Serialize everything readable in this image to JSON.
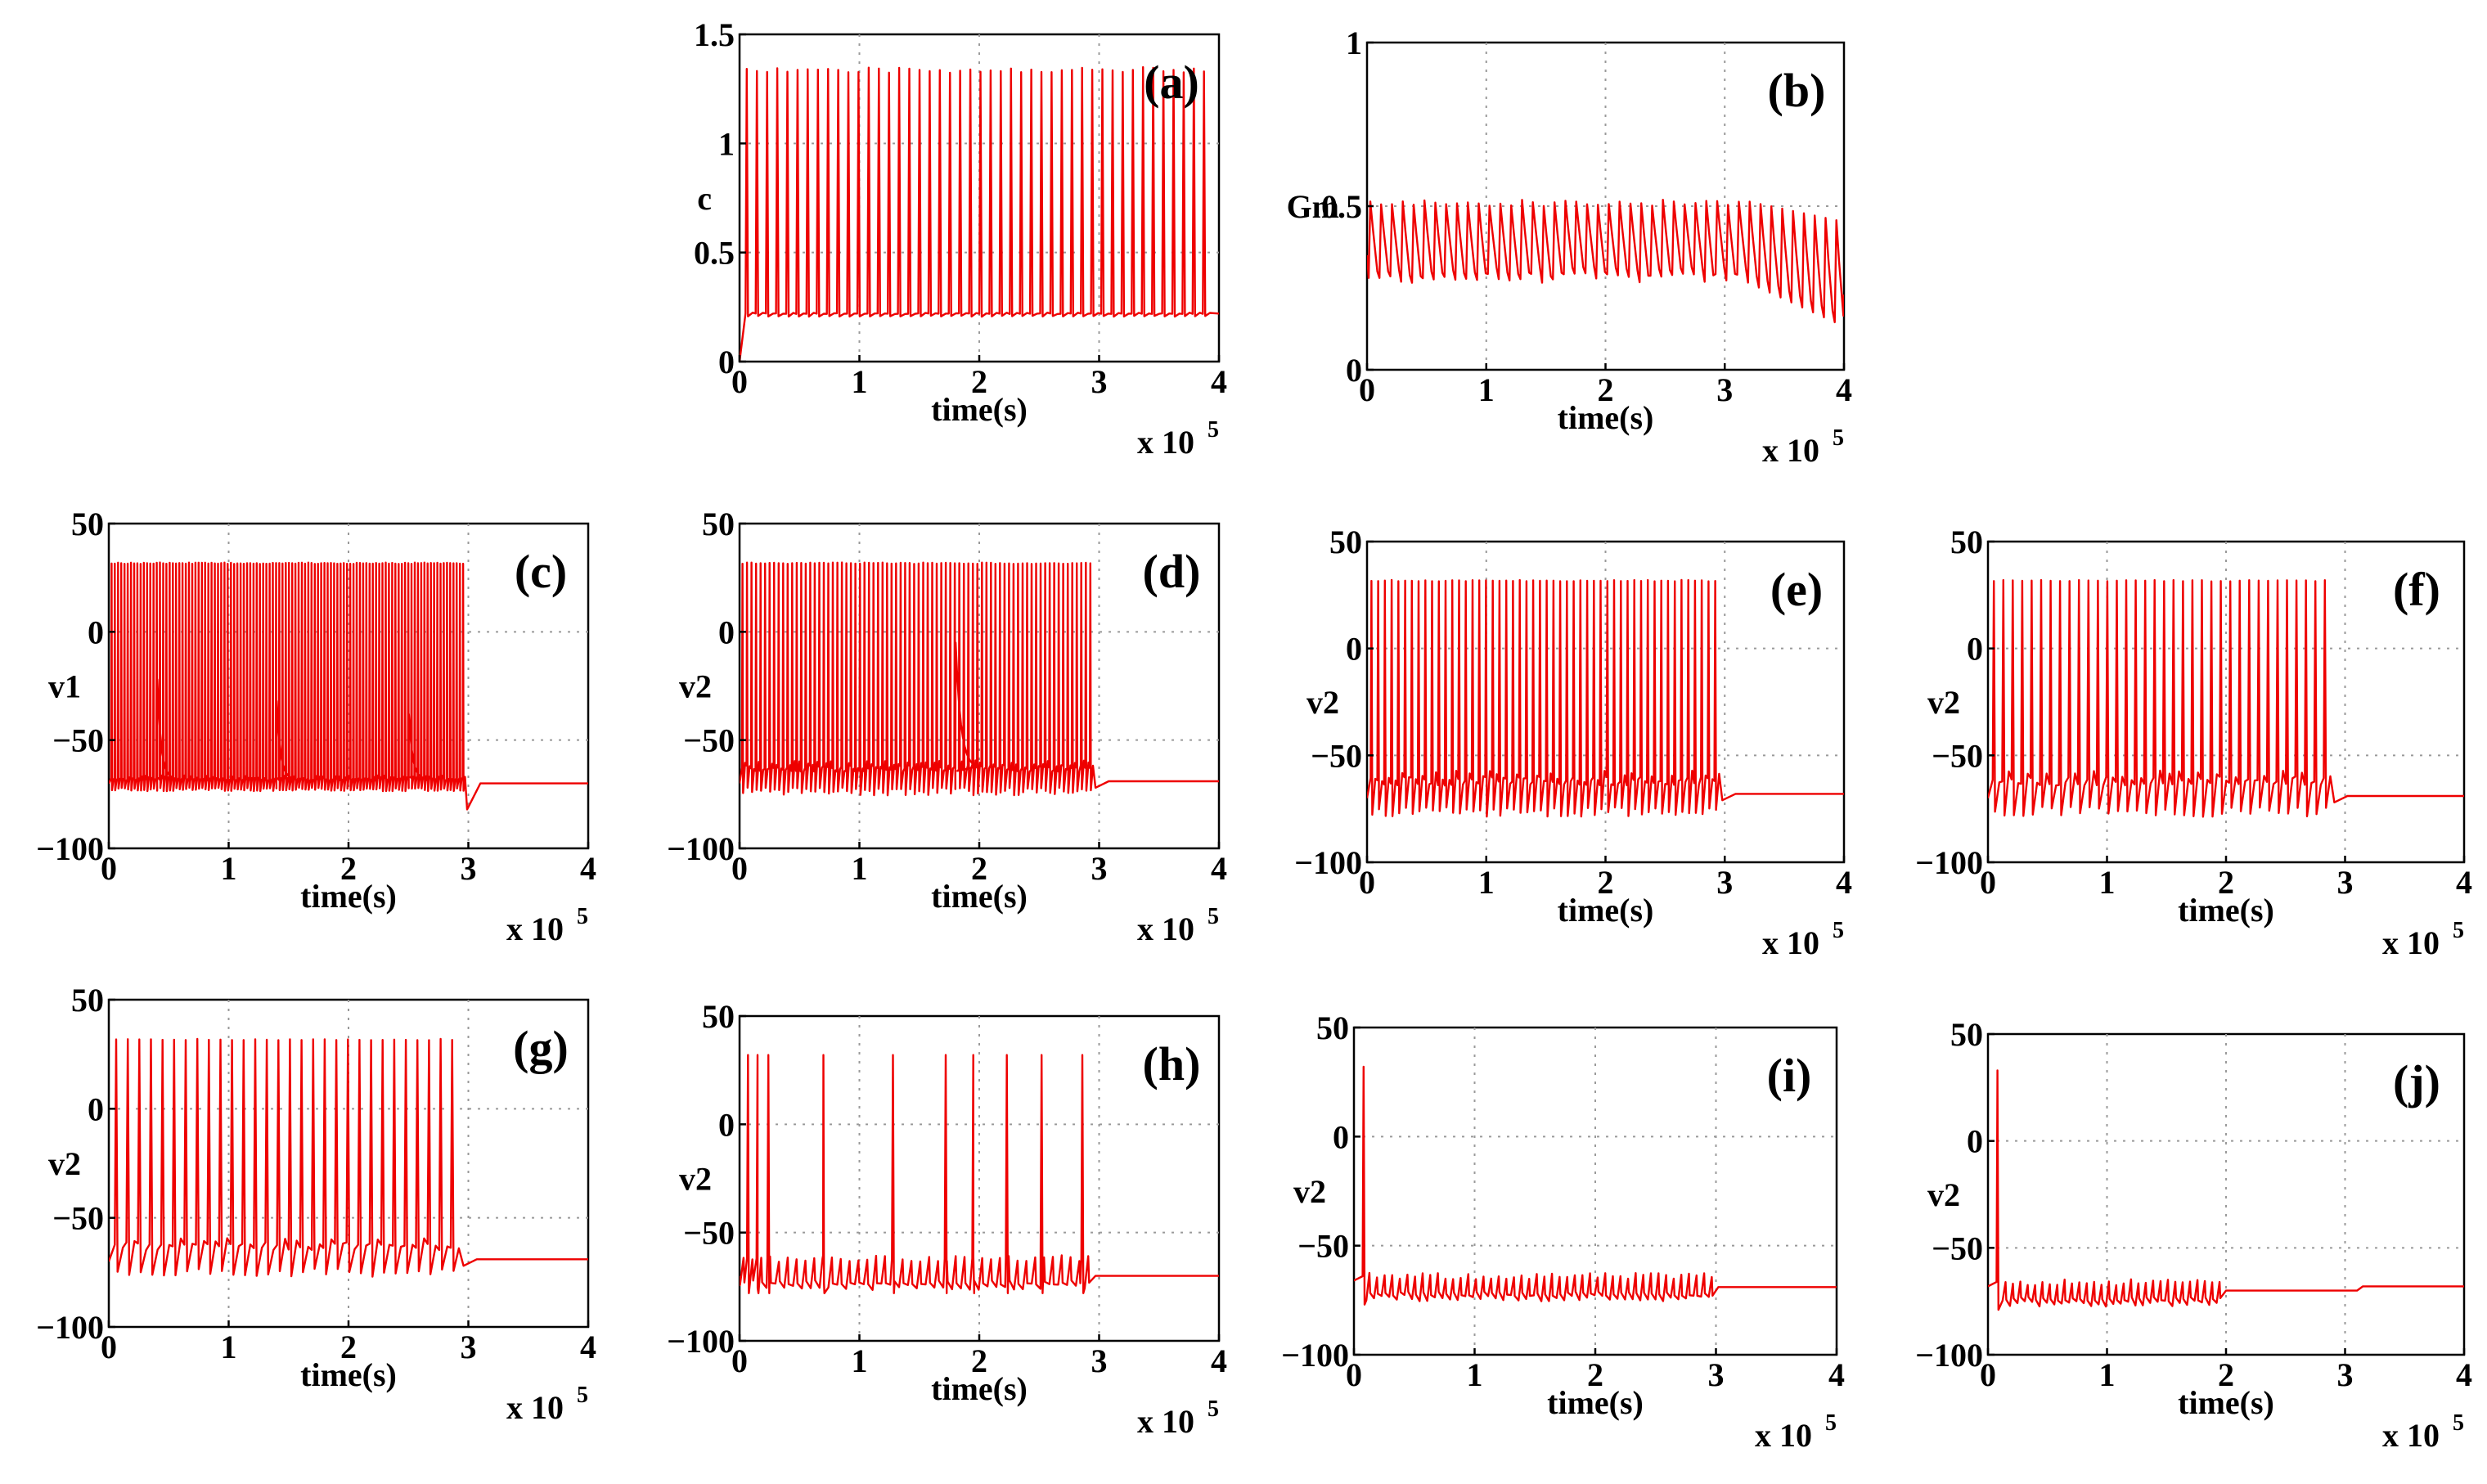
{
  "figure": {
    "description_free": true
  },
  "chart_data": [
    {
      "id": "a",
      "type": "line",
      "panel_label": "(a)",
      "xlabel": "time(s)",
      "ylabel": "c",
      "x_multiplier": "x 10",
      "x_multiplier_exp": "5",
      "xlim": [
        0,
        4
      ],
      "ylim": [
        0,
        1.5
      ],
      "xticks": [
        0,
        1,
        2,
        3,
        4
      ],
      "xtick_labels": [
        "0",
        "1",
        "2",
        "3",
        "4"
      ],
      "yticks": [
        0,
        0.5,
        1,
        1.5
      ],
      "ytick_labels": [
        "0",
        "0.5",
        "1",
        "1.5"
      ],
      "series": [
        {
          "name": "c",
          "color": "#ee0000",
          "model": {
            "kind": "spikes",
            "x_start": 0.0,
            "x_end": 4.0,
            "spike_start": 0.05,
            "spike_end": 3.95,
            "count": 46,
            "baseline": 0.22,
            "peak": 1.35,
            "undershoot": 0.21,
            "initial": 0.0
          }
        }
      ]
    },
    {
      "id": "b",
      "type": "line",
      "panel_label": "(b)",
      "xlabel": "time(s)",
      "ylabel": "Gm",
      "x_multiplier": "x 10",
      "x_multiplier_exp": "5",
      "xlim": [
        0,
        4
      ],
      "ylim": [
        0,
        1
      ],
      "xticks": [
        0,
        1,
        2,
        3,
        4
      ],
      "xtick_labels": [
        "0",
        "1",
        "2",
        "3",
        "4"
      ],
      "yticks": [
        0,
        0.5,
        1
      ],
      "ytick_labels": [
        "0",
        "0.5",
        "1"
      ],
      "series": [
        {
          "name": "Gm",
          "color": "#ee0000",
          "model": {
            "kind": "sawtooth",
            "x_start": 0.0,
            "x_end": 4.0,
            "count": 44,
            "high": 0.52,
            "low": 0.28,
            "tail_start": 3.1,
            "tail_high": 0.45,
            "tail_low": 0.13,
            "initial": 0.35
          }
        }
      ]
    },
    {
      "id": "c",
      "type": "line",
      "panel_label": "(c)",
      "xlabel": "time(s)",
      "ylabel": "v1",
      "x_multiplier": "x 10",
      "x_multiplier_exp": "5",
      "xlim": [
        0,
        4
      ],
      "ylim": [
        -100,
        50
      ],
      "xticks": [
        0,
        1,
        2,
        3,
        4
      ],
      "xtick_labels": [
        "0",
        "1",
        "2",
        "3",
        "4"
      ],
      "yticks": [
        -100,
        -50,
        0,
        50
      ],
      "ytick_labels": [
        "−100",
        "−50",
        "0",
        "50"
      ],
      "series": [
        {
          "name": "v1",
          "color": "#ee0000",
          "model": {
            "kind": "spikes",
            "x_start": 0.0,
            "x_end": 4.0,
            "spike_start": 0.02,
            "spike_end": 2.98,
            "count": 110,
            "baseline": -68,
            "peak": 32,
            "undershoot": -72,
            "rest": -70,
            "rest_dip": -82,
            "initial": -70,
            "decays": [
              [
                0.4,
                -22
              ],
              [
                1.4,
                -32
              ],
              [
                2.5,
                -38
              ]
            ]
          }
        }
      ]
    },
    {
      "id": "d",
      "type": "line",
      "panel_label": "(d)",
      "xlabel": "time(s)",
      "ylabel": "v2",
      "x_multiplier": "x 10",
      "x_multiplier_exp": "5",
      "xlim": [
        0,
        4
      ],
      "ylim": [
        -100,
        50
      ],
      "xticks": [
        0,
        1,
        2,
        3,
        4
      ],
      "xtick_labels": [
        "0",
        "1",
        "2",
        "3",
        "4"
      ],
      "yticks": [
        -100,
        -50,
        0,
        50
      ],
      "ytick_labels": [
        "−100",
        "−50",
        "0",
        "50"
      ],
      "series": [
        {
          "name": "v2",
          "color": "#ee0000",
          "model": {
            "kind": "spikes",
            "x_start": 0.0,
            "x_end": 4.0,
            "spike_start": 0.02,
            "spike_end": 2.96,
            "count": 78,
            "baseline": -63,
            "peak": 32,
            "undershoot": -72,
            "rest": -69,
            "initial": -70,
            "decays": [
              [
                1.8,
                -5
              ]
            ]
          }
        }
      ]
    },
    {
      "id": "e",
      "type": "line",
      "panel_label": "(e)",
      "xlabel": "time(s)",
      "ylabel": "v2",
      "x_multiplier": "x 10",
      "x_multiplier_exp": "5",
      "xlim": [
        0,
        4
      ],
      "ylim": [
        -100,
        50
      ],
      "xticks": [
        0,
        1,
        2,
        3,
        4
      ],
      "xtick_labels": [
        "0",
        "1",
        "2",
        "3",
        "4"
      ],
      "yticks": [
        -100,
        -50,
        0,
        50
      ],
      "ytick_labels": [
        "−100",
        "−50",
        "0",
        "50"
      ],
      "series": [
        {
          "name": "v2",
          "color": "#ee0000",
          "model": {
            "kind": "spikes",
            "x_start": 0.0,
            "x_end": 4.0,
            "spike_start": 0.03,
            "spike_end": 2.97,
            "count": 52,
            "baseline": -62,
            "peak": 32,
            "undershoot": -74,
            "rest": -68,
            "initial": -70
          }
        }
      ]
    },
    {
      "id": "f",
      "type": "line",
      "panel_label": "(f)",
      "xlabel": "time(s)",
      "ylabel": "v2",
      "x_multiplier": "x 10",
      "x_multiplier_exp": "5",
      "xlim": [
        0,
        4
      ],
      "ylim": [
        -100,
        50
      ],
      "xticks": [
        0,
        1,
        2,
        3,
        4
      ],
      "xtick_labels": [
        "0",
        "1",
        "2",
        "3",
        "4"
      ],
      "yticks": [
        -100,
        -50,
        0,
        50
      ],
      "ytick_labels": [
        "−100",
        "−50",
        "0",
        "50"
      ],
      "series": [
        {
          "name": "v2",
          "color": "#ee0000",
          "model": {
            "kind": "spikes",
            "x_start": 0.0,
            "x_end": 4.0,
            "spike_start": 0.04,
            "spike_end": 2.9,
            "count": 36,
            "baseline": -62,
            "peak": 32,
            "undershoot": -74,
            "rest": -69,
            "initial": -70
          }
        }
      ]
    },
    {
      "id": "g",
      "type": "line",
      "panel_label": "(g)",
      "xlabel": "time(s)",
      "ylabel": "v2",
      "x_multiplier": "x 10",
      "x_multiplier_exp": "5",
      "xlim": [
        0,
        4
      ],
      "ylim": [
        -100,
        50
      ],
      "xticks": [
        0,
        1,
        2,
        3,
        4
      ],
      "xtick_labels": [
        "0",
        "1",
        "2",
        "3",
        "4"
      ],
      "yticks": [
        -100,
        -50,
        0,
        50
      ],
      "ytick_labels": [
        "−100",
        "−50",
        "0",
        "50"
      ],
      "series": [
        {
          "name": "v2",
          "color": "#ee0000",
          "model": {
            "kind": "spikes",
            "x_start": 0.0,
            "x_end": 4.0,
            "spike_start": 0.05,
            "spike_end": 2.95,
            "count": 30,
            "baseline": -63,
            "peak": 32,
            "undershoot": -73,
            "rest": -69,
            "initial": -70
          }
        }
      ]
    },
    {
      "id": "h",
      "type": "line",
      "panel_label": "(h)",
      "xlabel": "time(s)",
      "ylabel": "v2",
      "x_multiplier": "x 10",
      "x_multiplier_exp": "5",
      "xlim": [
        0,
        4
      ],
      "ylim": [
        -100,
        50
      ],
      "xticks": [
        0,
        1,
        2,
        3,
        4
      ],
      "xtick_labels": [
        "0",
        "1",
        "2",
        "3",
        "4"
      ],
      "yticks": [
        -100,
        -50,
        0,
        50
      ],
      "ytick_labels": [
        "−100",
        "−50",
        "0",
        "50"
      ],
      "series": [
        {
          "name": "v2",
          "color": "#ee0000",
          "model": {
            "kind": "spikes_list",
            "x_start": 0.0,
            "x_end": 4.0,
            "osc_start": 0.0,
            "osc_end": 2.95,
            "osc_count": 40,
            "osc_high": -62,
            "osc_low": -75,
            "peak": 32,
            "rest": -70,
            "initial": -70,
            "spike_times": [
              0.07,
              0.15,
              0.24,
              0.7,
              1.28,
              1.72,
              1.95,
              2.23,
              2.52,
              2.86
            ]
          }
        }
      ]
    },
    {
      "id": "i",
      "type": "line",
      "panel_label": "(i)",
      "xlabel": "time(s)",
      "ylabel": "v2",
      "x_multiplier": "x 10",
      "x_multiplier_exp": "5",
      "xlim": [
        0,
        4
      ],
      "ylim": [
        -100,
        50
      ],
      "xticks": [
        0,
        1,
        2,
        3,
        4
      ],
      "xtick_labels": [
        "0",
        "1",
        "2",
        "3",
        "4"
      ],
      "yticks": [
        -100,
        -50,
        0,
        50
      ],
      "ytick_labels": [
        "−100",
        "−50",
        "0",
        "50"
      ],
      "series": [
        {
          "name": "v2",
          "color": "#ee0000",
          "model": {
            "kind": "spikes_list",
            "x_start": 0.0,
            "x_end": 4.0,
            "osc_start": 0.1,
            "osc_end": 3.0,
            "osc_count": 46,
            "osc_high": -64,
            "osc_low": -74,
            "peak": 32,
            "rest": -69,
            "initial": -66,
            "spike_times": [
              0.08
            ]
          }
        }
      ]
    },
    {
      "id": "j",
      "type": "line",
      "panel_label": "(j)",
      "xlabel": "time(s)",
      "ylabel": "v2",
      "x_multiplier": "x 10",
      "x_multiplier_exp": "5",
      "xlim": [
        0,
        4
      ],
      "ylim": [
        -100,
        50
      ],
      "xticks": [
        0,
        1,
        2,
        3,
        4
      ],
      "xtick_labels": [
        "0",
        "1",
        "2",
        "3",
        "4"
      ],
      "yticks": [
        -100,
        -50,
        0,
        50
      ],
      "ytick_labels": [
        "−100",
        "−50",
        "0",
        "50"
      ],
      "series": [
        {
          "name": "v2",
          "color": "#ee0000",
          "model": {
            "kind": "spikes_list",
            "x_start": 0.0,
            "x_end": 4.0,
            "osc_start": 0.12,
            "osc_end": 1.98,
            "osc_count": 30,
            "osc_high": -66,
            "osc_low": -76,
            "peak": 33,
            "rest": -70,
            "rest2_start": 3.1,
            "rest2": -68,
            "initial": -68,
            "spike_times": [
              0.08
            ]
          }
        }
      ]
    }
  ]
}
